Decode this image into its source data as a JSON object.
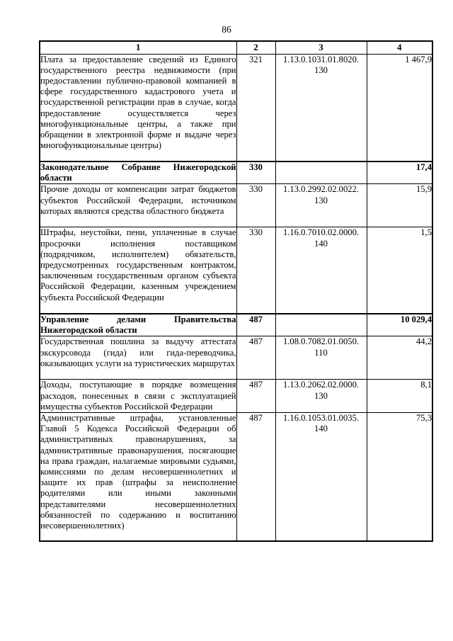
{
  "page": {
    "number": "86"
  },
  "table": {
    "headers": [
      "1",
      "2",
      "3",
      "4"
    ],
    "rows": [
      {
        "description": "Плата за предоставление сведений из Единого государственного реестра недвижимости (при предоставлении публично-правовой компанией в сфере государственного кадастрового учета и государственной регистрации прав в случае, когда предоставление осуществляется через многофункциональные центры, а также при обращении в электронной форме и выдаче через многофункциональные центры)",
        "admin_code": "321",
        "kbk_code": "1.13.0.1031.01.8020.\n130",
        "amount": "1 467,9"
      },
      {
        "description": "Законодательное Собрание Нижегородской области",
        "admin_code": "330",
        "kbk_code": "",
        "amount": "17,4"
      },
      {
        "description": "Прочие доходы от компенсации затрат бюджетов субъектов Российской Федерации, источником которых являются средства областного бюджета",
        "admin_code": "330",
        "kbk_code": "1.13.0.2992.02.0022.\n130",
        "amount": "15,9"
      },
      {
        "description": "Штрафы, неустойки, пени, уплаченные в случае просрочки исполнения поставщиком (подрядчиком, исполнителем) обязательств, предусмотренных государственным контрактом, заключенным государственным органом субъекта Российской Федерации, казенным учреждением субъекта Российской Федерации",
        "admin_code": "330",
        "kbk_code": "1.16.0.7010.02.0000.\n140",
        "amount": "1,5"
      },
      {
        "description": "Управление делами Правительства Нижегородской области",
        "admin_code": "487",
        "kbk_code": "",
        "amount": "10 029,4"
      },
      {
        "description": "Государственная пошлина за выдучу аттестата экскурсовода (гида) или гида-переводчика, оказывающих услуги на туристических маршрутах",
        "admin_code": "487",
        "kbk_code": "1.08.0.7082.01.0050.\n110",
        "amount": "44,2"
      },
      {
        "description": "Доходы, поступающие в порядке возмещения расходов, понесенных в связи с эксплуатацией имущества субъектов Российской Федерации",
        "admin_code": "487",
        "kbk_code": "1.13.0.2062.02.0000.\n130",
        "amount": "8,1"
      },
      {
        "description": "Административные штрафы, установленные Главой 5 Кодекса Российской Федерации об административных правонарушениях, за административные правонарушения, посягающие на права граждан, налагаемые мировыми судьями, комиссиями по делам несовершеннолетних и защите их прав (штрафы за неисполнение родителями или иными законными представителями несовершеннолетних обязанностей по содержанию и воспитанию несовершеннолетних)",
        "admin_code": "487",
        "kbk_code": "1.16.0.1053.01.0035.\n140",
        "amount": "75,3"
      }
    ]
  }
}
